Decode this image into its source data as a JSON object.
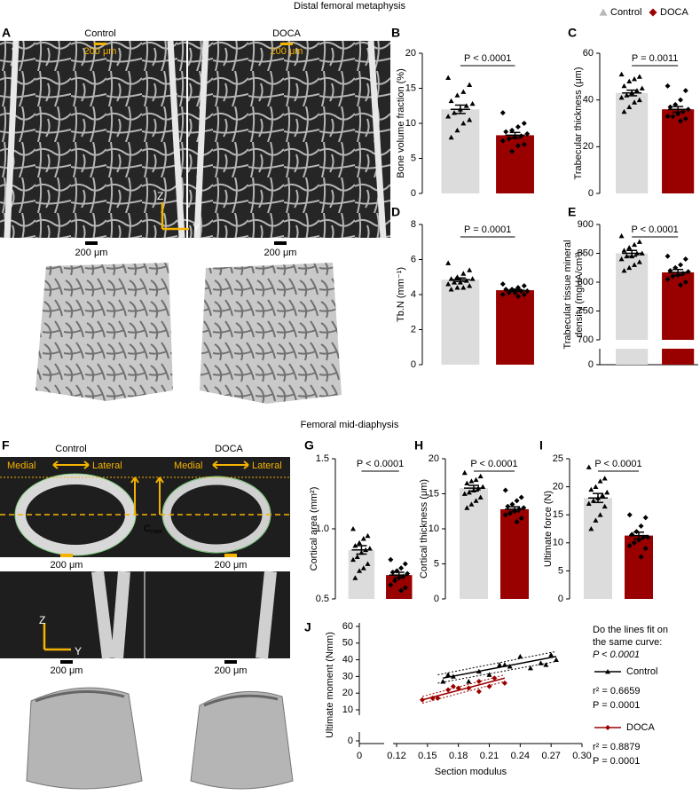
{
  "figure": {
    "section_top": "Distal femoral metaphysis",
    "section_mid": "Femoral mid-diaphysis",
    "legend": [
      {
        "name": "Control",
        "marker": "triangle",
        "color": "#b8b8b8"
      },
      {
        "name": "DOCA",
        "marker": "diamond",
        "color": "#9b0000"
      }
    ],
    "panel_a": {
      "letter": "A",
      "left": "Control",
      "right": "DOCA",
      "scale_top": [
        "200 μm",
        "200 μm"
      ],
      "scale_bottom": [
        "200 μm",
        "200 μm"
      ],
      "axis_z": "Z",
      "axis_y": "Y"
    },
    "panel_f": {
      "letter": "F",
      "left": "Control",
      "right": "DOCA",
      "medial": [
        "Medial",
        "Medial"
      ],
      "lateral": [
        "Lateral",
        "Lateral"
      ],
      "cmax": {
        "base": "C",
        "sub": "max"
      },
      "scale_top": [
        "200 μm",
        "200 μm"
      ],
      "scale_bottom": [
        "200 μm",
        "200 μm"
      ],
      "axis_z": "Z",
      "axis_y": "Y"
    }
  },
  "chart_data": [
    {
      "type": "bar",
      "panel": "B",
      "ylabel": "Bone volume fraction (%)",
      "p_label": "P < 0.0001",
      "colors": [
        "#dcdcdc",
        "#990000"
      ],
      "point_color": "#000000",
      "values": [
        12,
        8.3
      ],
      "errors": [
        0.6,
        0.4
      ],
      "points": [
        [
          16.5,
          15.5,
          14.5,
          14,
          13.2,
          12.8,
          12.5,
          12,
          11.5,
          11,
          10.5,
          10,
          9,
          8
        ],
        [
          11.5,
          10,
          9.5,
          9,
          8.8,
          8.5,
          8.2,
          8,
          7.8,
          7.5,
          7,
          6.8,
          6
        ]
      ],
      "ylim": [
        0,
        20
      ],
      "yticks": [
        0,
        5,
        10,
        15,
        20
      ]
    },
    {
      "type": "bar",
      "panel": "C",
      "ylabel": "Trabecular thickness (μm)",
      "p_label": "P = 0.0011",
      "colors": [
        "#dcdcdc",
        "#990000"
      ],
      "point_color": "#000000",
      "values": [
        43,
        36
      ],
      "errors": [
        1.2,
        1.2
      ],
      "points": [
        [
          51,
          50,
          49,
          48,
          46,
          45,
          44,
          43,
          42,
          41,
          40,
          39,
          37,
          35
        ],
        [
          46,
          44,
          40,
          38,
          37,
          36,
          35,
          34,
          33,
          33,
          32,
          31
        ]
      ],
      "ylim": [
        0,
        60
      ],
      "yticks": [
        0,
        20,
        40,
        60
      ]
    },
    {
      "type": "bar",
      "panel": "D",
      "ylabel": "Tb.N (mm⁻¹)",
      "p_label": "P = 0.0001",
      "colors": [
        "#dcdcdc",
        "#990000"
      ],
      "point_color": "#000000",
      "values": [
        4.85,
        4.25
      ],
      "errors": [
        0.1,
        0.06
      ],
      "points": [
        [
          5.8,
          5.4,
          5.2,
          5,
          4.9,
          4.9,
          4.8,
          4.7,
          4.7,
          4.6,
          4.5,
          4.4,
          4.4,
          4.3
        ],
        [
          4.6,
          4.5,
          4.4,
          4.3,
          4.3,
          4.2,
          4.2,
          4.1,
          4.1,
          4,
          4,
          3.9
        ]
      ],
      "ylim": [
        0,
        8
      ],
      "yticks": [
        0,
        2,
        4,
        6,
        8
      ]
    },
    {
      "type": "bar",
      "panel": "E",
      "ylabel": [
        "Trabecular tissue mineral",
        "density (mgHA/cm³)"
      ],
      "p_label": "P < 0.0001",
      "colors": [
        "#dcdcdc",
        "#990000"
      ],
      "point_color": "#000000",
      "values": [
        850,
        817
      ],
      "errors": [
        5,
        5
      ],
      "points": [
        [
          880,
          870,
          865,
          860,
          855,
          850,
          850,
          845,
          845,
          840,
          835,
          830,
          825,
          820
        ],
        [
          845,
          840,
          830,
          825,
          820,
          818,
          815,
          812,
          810,
          805,
          800,
          795
        ]
      ],
      "ylim": [
        700,
        900
      ],
      "yticks": [
        0,
        700,
        750,
        800,
        850,
        900
      ],
      "axis_break": true
    },
    {
      "type": "bar",
      "panel": "G",
      "ylabel": "Cortical area (mm²)",
      "p_label": "P < 0.0001",
      "colors": [
        "#dcdcdc",
        "#990000"
      ],
      "point_color": "#000000",
      "values": [
        0.85,
        0.67
      ],
      "errors": [
        0.03,
        0.02
      ],
      "points": [
        [
          1,
          0.95,
          0.93,
          0.9,
          0.88,
          0.86,
          0.85,
          0.83,
          0.8,
          0.78,
          0.75,
          0.72,
          0.7,
          0.65
        ],
        [
          0.78,
          0.75,
          0.72,
          0.7,
          0.69,
          0.68,
          0.66,
          0.65,
          0.63,
          0.6,
          0.58,
          0.56
        ]
      ],
      "ylim": [
        0.5,
        1.5
      ],
      "yticks": [
        0.5,
        {
          "value": 1,
          "label": "1.0"
        },
        1.5
      ]
    },
    {
      "type": "bar",
      "panel": "H",
      "ylabel": "Cortical thickness (μm)",
      "p_label": "P < 0.0001",
      "colors": [
        "#dcdcdc",
        "#990000"
      ],
      "point_color": "#000000",
      "values": [
        15.8,
        12.8
      ],
      "errors": [
        0.4,
        0.35
      ],
      "points": [
        [
          18,
          17.5,
          17,
          16.8,
          16.5,
          16,
          15.8,
          15.5,
          15.2,
          15,
          14.5,
          14,
          13.5,
          13
        ],
        [
          15.5,
          14.5,
          14,
          13.5,
          13.2,
          13,
          12.8,
          12.5,
          12.2,
          12,
          11.5,
          11
        ]
      ],
      "ylim": [
        0,
        20
      ],
      "yticks": [
        0,
        5,
        10,
        15,
        20
      ]
    },
    {
      "type": "bar",
      "panel": "I",
      "ylabel": "Ultimate force (N)",
      "p_label": "P < 0.0001",
      "colors": [
        "#dcdcdc",
        "#990000"
      ],
      "point_color": "#000000",
      "values": [
        18,
        11.3
      ],
      "errors": [
        0.8,
        0.6
      ],
      "points": [
        [
          23.5,
          21.5,
          21,
          20,
          19.5,
          19,
          18.5,
          18,
          17.5,
          17,
          16.5,
          15,
          14,
          12.5
        ],
        [
          15,
          14.5,
          13,
          12,
          11.5,
          11,
          11,
          10.5,
          10,
          9.5,
          9,
          7.5
        ]
      ],
      "ylim": [
        0,
        25
      ],
      "yticks": [
        0,
        5,
        10,
        15,
        20,
        25
      ]
    },
    {
      "type": "scatter",
      "panel": "J",
      "xlabel": "Section modulus",
      "ylabel": "Ultimate moment (Nmm)",
      "question": [
        "Do the lines fit on",
        "the same curve:"
      ],
      "question_p": "P < 0.0001",
      "xlim": [
        0.12,
        0.3
      ],
      "ylim": [
        10,
        60
      ],
      "axis_break": true,
      "xticks": [
        0,
        0.12,
        0.15,
        0.18,
        0.21,
        0.24,
        0.27,
        {
          "value": 0.3,
          "label": "0.30"
        }
      ],
      "yticks": [
        0,
        10,
        20,
        30,
        40,
        50,
        60
      ],
      "series": [
        {
          "name": "Control",
          "color": "#000000",
          "marker": "triangle",
          "r2_label": "r² = 0.6659",
          "p_label": "P = 0.0001",
          "x": [
            0.165,
            0.17,
            0.175,
            0.19,
            0.2,
            0.21,
            0.22,
            0.225,
            0.23,
            0.24,
            0.25,
            0.26,
            0.265,
            0.27,
            0.275
          ],
          "y": [
            27,
            31,
            30,
            27,
            33,
            31,
            37,
            37,
            36,
            42,
            35,
            38,
            37,
            43,
            40
          ],
          "fit": {
            "x": [
              0.165,
              0.275
            ],
            "y": [
              29,
              42
            ]
          },
          "ci_upper": {
            "x": [
              0.16,
              0.275
            ],
            "y": [
              31,
              45
            ]
          },
          "ci_lower": {
            "x": [
              0.16,
              0.275
            ],
            "y": [
              26,
              39
            ]
          }
        },
        {
          "name": "DOCA",
          "color": "#9b0000",
          "marker": "diamond",
          "r2_label": "r² = 0.8879",
          "p_label": "P = 0.0001",
          "x": [
            0.145,
            0.155,
            0.16,
            0.17,
            0.175,
            0.18,
            0.19,
            0.2,
            0.2,
            0.21,
            0.215,
            0.225
          ],
          "y": [
            16,
            17,
            17,
            22,
            24,
            23,
            23,
            27,
            21,
            24,
            29,
            26
          ],
          "fit": {
            "x": [
              0.145,
              0.225
            ],
            "y": [
              16,
              29
            ]
          },
          "ci_upper": {
            "x": [
              0.145,
              0.225
            ],
            "y": [
              18,
              31
            ]
          },
          "ci_lower": {
            "x": [
              0.145,
              0.225
            ],
            "y": [
              14,
              27
            ]
          }
        }
      ]
    }
  ]
}
